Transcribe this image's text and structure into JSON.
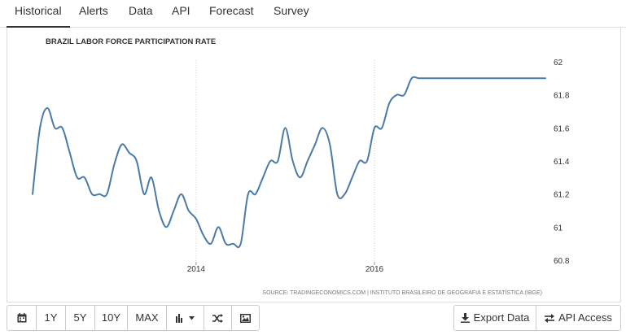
{
  "tabs": [
    {
      "label": "Historical",
      "active": true
    },
    {
      "label": "Alerts",
      "active": false
    },
    {
      "label": "Data",
      "active": false
    },
    {
      "label": "API",
      "active": false
    },
    {
      "label": "Forecast",
      "active": false
    },
    {
      "label": "Survey",
      "active": false
    }
  ],
  "chart_data": {
    "type": "line",
    "title": "BRAZIL LABOR FORCE PARTICIPATION RATE",
    "source": "SOURCE: TRADINGECONOMICS.COM | INSTITUTO BRASILEIRO DE GEOGRAFIA E ESTATÍSTICA (IBGE)",
    "xlabel": "",
    "ylabel": "",
    "ylim": [
      60.8,
      62
    ],
    "yticks": [
      "62",
      "61.8",
      "61.6",
      "61.4",
      "61.2",
      "61",
      "60.8"
    ],
    "xticks": [
      "2014",
      "2016"
    ],
    "y_axis_position": "right",
    "grid": "vertical",
    "line_color": "#4a7ba7",
    "series": [
      {
        "x": [
          "2012-03",
          "2012-04",
          "2012-05",
          "2012-06",
          "2012-07",
          "2012-08",
          "2012-09",
          "2012-10",
          "2012-11",
          "2012-12",
          "2013-01",
          "2013-02",
          "2013-03",
          "2013-04",
          "2013-05",
          "2013-06",
          "2013-07",
          "2013-08",
          "2013-09",
          "2013-10",
          "2013-11",
          "2013-12",
          "2014-01",
          "2014-02",
          "2014-03",
          "2014-04",
          "2014-05",
          "2014-06",
          "2014-07",
          "2014-08",
          "2014-09",
          "2014-10",
          "2014-11",
          "2014-12",
          "2015-01",
          "2015-02",
          "2015-03",
          "2015-04",
          "2015-05",
          "2015-06",
          "2015-07",
          "2015-08",
          "2015-09",
          "2015-10",
          "2015-11",
          "2015-12",
          "2016-01",
          "2016-02",
          "2016-03",
          "2016-04",
          "2016-05",
          "2016-06",
          "2016-07",
          "2016-08",
          "2016-09",
          "2016-10",
          "2016-11",
          "2016-12",
          "2017-01",
          "2017-02",
          "2017-03",
          "2017-04",
          "2017-05",
          "2017-06",
          "2017-07",
          "2017-08",
          "2017-09",
          "2017-10",
          "2017-11",
          "2017-12"
        ],
        "values": [
          61.2,
          61.6,
          61.72,
          61.6,
          61.6,
          61.45,
          61.3,
          61.3,
          61.2,
          61.2,
          61.2,
          61.38,
          61.5,
          61.45,
          61.4,
          61.2,
          61.3,
          61.1,
          61.0,
          61.1,
          61.2,
          61.1,
          61.05,
          60.95,
          60.9,
          61.0,
          60.9,
          60.9,
          60.9,
          61.2,
          61.2,
          61.3,
          61.4,
          61.4,
          61.6,
          61.4,
          61.3,
          61.4,
          61.5,
          61.6,
          61.5,
          61.2,
          61.2,
          61.3,
          61.4,
          61.4,
          61.6,
          61.6,
          61.75,
          61.8,
          61.8,
          61.9,
          61.9,
          61.9,
          61.9,
          61.9,
          61.9,
          61.9,
          61.9,
          61.9,
          61.9,
          61.9,
          61.9,
          61.9,
          61.9,
          61.9,
          61.9,
          61.9,
          61.9,
          61.9
        ]
      }
    ]
  },
  "toolbar": {
    "calendar_icon": "calendar-icon",
    "ranges": [
      "1Y",
      "5Y",
      "10Y",
      "MAX"
    ],
    "chart_type_icon": "bar-chart-icon",
    "shuffle_icon": "shuffle-icon",
    "image_icon": "image-icon",
    "export_label": "Export Data",
    "api_label": "API Access"
  }
}
